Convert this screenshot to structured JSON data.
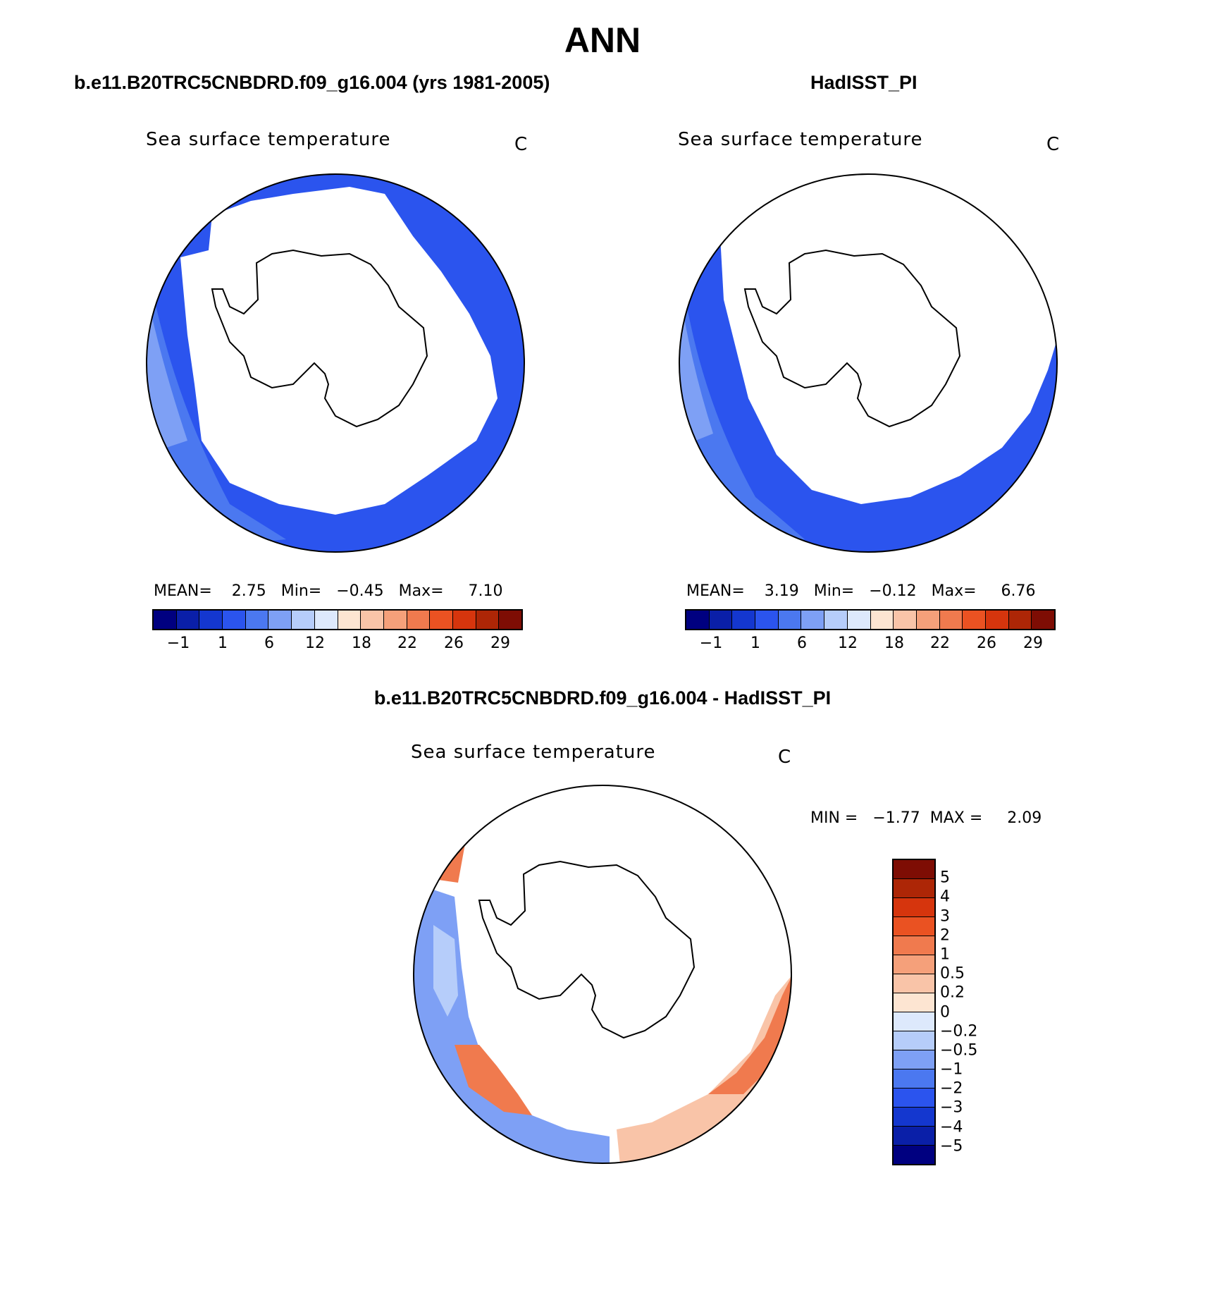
{
  "page": {
    "title": "ANN"
  },
  "panels": {
    "model": {
      "case_title": "b.e11.B20TRC5CNBDRD.f09_g16.004 (yrs 1981-2005)",
      "field_label": "Sea surface temperature",
      "unit": "C",
      "stats": "MEAN=    2.75   Min=   −0.45   Max=     7.10",
      "mean": 2.75,
      "min": -0.45,
      "max": 7.1
    },
    "obs": {
      "case_title": "HadISST_PI",
      "field_label": "Sea surface temperature",
      "unit": "C",
      "stats": "MEAN=    3.19   Min=   −0.12   Max=     6.76",
      "mean": 3.19,
      "min": -0.12,
      "max": 6.76
    },
    "diff": {
      "case_title": "b.e11.B20TRC5CNBDRD.f09_g16.004 - HadISST_PI",
      "field_label": "Sea surface temperature",
      "unit": "C",
      "stats": "MIN =   −1.77  MAX =     2.09",
      "min": -1.77,
      "max": 2.09
    }
  },
  "colorbar_abs": {
    "colors": [
      "#000080",
      "#0a1fa8",
      "#1437cf",
      "#2b54ee",
      "#4b78f0",
      "#7ea0f5",
      "#b6cdfa",
      "#dde9fc",
      "#fde5d2",
      "#f9c4a8",
      "#f5a07a",
      "#f07a4e",
      "#ea5222",
      "#d6350d",
      "#ad2606",
      "#7e0d04"
    ],
    "tick_labels": [
      "−1",
      "1",
      "6",
      "12",
      "18",
      "22",
      "26",
      "29"
    ]
  },
  "colorbar_diff": {
    "colors": [
      "#7e0d04",
      "#ad2606",
      "#d6350d",
      "#ea5222",
      "#f07a4e",
      "#f5a07a",
      "#f9c4a8",
      "#fde5d2",
      "#dde9fc",
      "#b6cdfa",
      "#7ea0f5",
      "#4b78f0",
      "#2b54ee",
      "#1437cf",
      "#0a1fa8",
      "#000080"
    ],
    "tick_labels": [
      "5",
      "4",
      "3",
      "2",
      "1",
      "0.5",
      "0.2",
      "0",
      "−0.2",
      "−0.5",
      "−1",
      "−2",
      "−3",
      "−4",
      "−5"
    ]
  },
  "map_colors": {
    "ice_white": "#ffffff",
    "sst_dark": "#2b54ee",
    "sst_mid": "#4b78f0",
    "sst_light": "#7ea0f5",
    "diff_warm": "#f07a4e",
    "diff_warm_light": "#f9c4a8",
    "diff_cool": "#7ea0f5",
    "diff_cool_light": "#b6cdfa"
  }
}
